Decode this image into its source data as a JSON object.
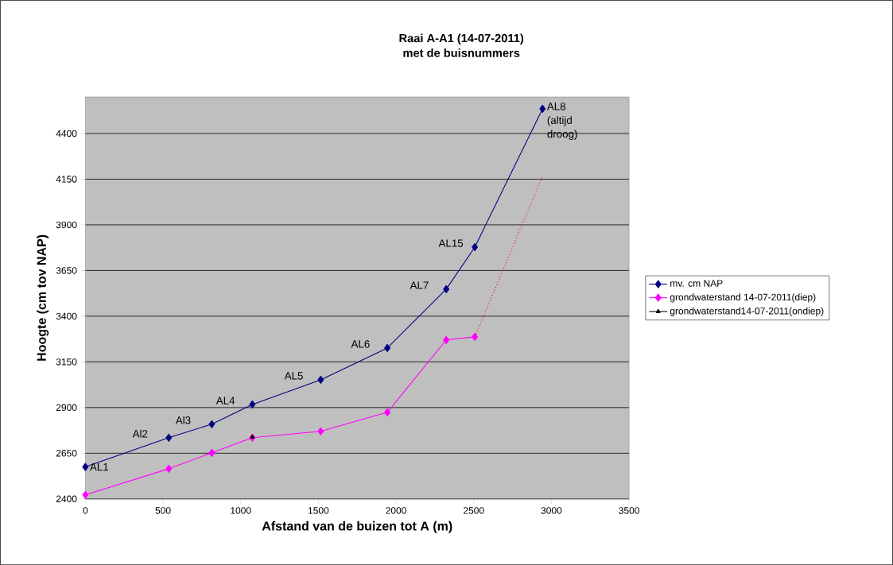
{
  "chart_data": {
    "type": "line",
    "title": "Raai A-A1 (14-07-2011)",
    "subtitle": "met de buisnummers",
    "xlabel": "Afstand van de buizen tot A (m)",
    "ylabel": "Hoogte (cm tov NAP)",
    "xlim": [
      0,
      3500
    ],
    "xticks": [
      0,
      500,
      1000,
      1500,
      2000,
      2500,
      3000,
      3500
    ],
    "ylim": [
      2400,
      4600
    ],
    "yticks": [
      2400,
      2650,
      2900,
      3150,
      3400,
      3650,
      3900,
      4150,
      4400
    ],
    "grid": "y",
    "legend": "right",
    "marker": "diamond",
    "line_style": "solid",
    "series": [
      {
        "name": "mv. cm NAP",
        "color": "#000080",
        "x": [
          0,
          537,
          814,
          1075,
          1515,
          1944,
          2323,
          2507,
          2943
        ],
        "values": [
          2575,
          2735,
          2809,
          2917,
          3052,
          3226,
          3548,
          3778,
          4535
        ]
      },
      {
        "name": "grondwaterstand 14-07-2011(diep)",
        "color": "#ff00ff",
        "x": [
          0,
          537,
          814,
          1075,
          1515,
          1944,
          2323,
          2507
        ],
        "values": [
          2422,
          2565,
          2652,
          2735,
          2770,
          2874,
          3270,
          3287
        ]
      },
      {
        "name": "grondwaterstand14-07-2011(ondiep)",
        "color": "#000000",
        "marker": "triangle",
        "x": [
          1075
        ],
        "values": [
          2739
        ]
      },
      {
        "color": "#ff0000",
        "line_style": "dotted",
        "marker": "none",
        "x": [
          2507,
          2943
        ],
        "values": [
          3287,
          4165
        ]
      }
    ],
    "annotations": [
      {
        "text": "AL1",
        "x": 0,
        "y": 2575
      },
      {
        "text": "Al2",
        "x": 537,
        "y": 2735
      },
      {
        "text": "Al3",
        "x": 814,
        "y": 2809
      },
      {
        "text": "AL4",
        "x": 1075,
        "y": 2917
      },
      {
        "text": "AL5",
        "x": 1515,
        "y": 3052
      },
      {
        "text": "AL6",
        "x": 1944,
        "y": 3226
      },
      {
        "text": "AL7",
        "x": 2323,
        "y": 3548
      },
      {
        "text": "AL15",
        "x": 2507,
        "y": 3778
      },
      {
        "text": "AL8 (altijd droog)",
        "x": 2943,
        "y": 4535
      }
    ]
  }
}
